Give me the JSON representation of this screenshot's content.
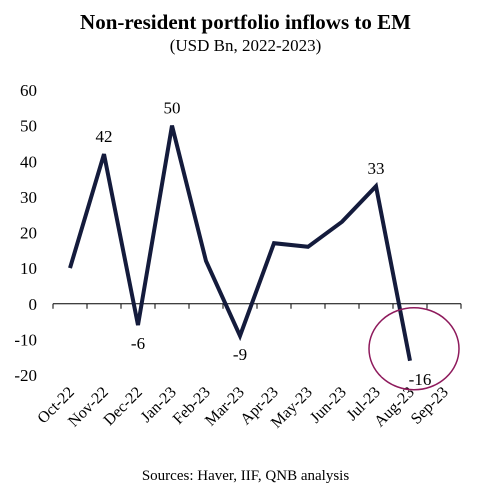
{
  "chart_data": {
    "type": "line",
    "title": "Non-resident portfolio inflows to EM",
    "subtitle": "(USD Bn, 2022-2023)",
    "source": "Sources: Haver, IIF, QNB analysis",
    "categories": [
      "Oct-22",
      "Nov-22",
      "Dec-22",
      "Jan-23",
      "Feb-23",
      "Mar-23",
      "Apr-23",
      "May-23",
      "Jun-23",
      "Jul-23",
      "Aug-23",
      "Sep-23"
    ],
    "series": [
      {
        "values": [
          10,
          42,
          -6,
          50,
          12,
          -9,
          17,
          16,
          23,
          33,
          -16,
          null
        ]
      }
    ],
    "data_labels": [
      null,
      "42",
      "-6",
      "50",
      null,
      "-9",
      null,
      null,
      null,
      "33",
      "-16",
      null
    ],
    "ylim": [
      -20,
      60
    ],
    "yticks": [
      -20,
      -10,
      0,
      10,
      20,
      30,
      40,
      50,
      60
    ],
    "grid": false,
    "xlabel": "",
    "ylabel": "",
    "highlight": "Aug-23",
    "colors": {
      "line": "#141b3c",
      "highlight_circle": "#8e1a5c",
      "axis": "#000000"
    }
  }
}
